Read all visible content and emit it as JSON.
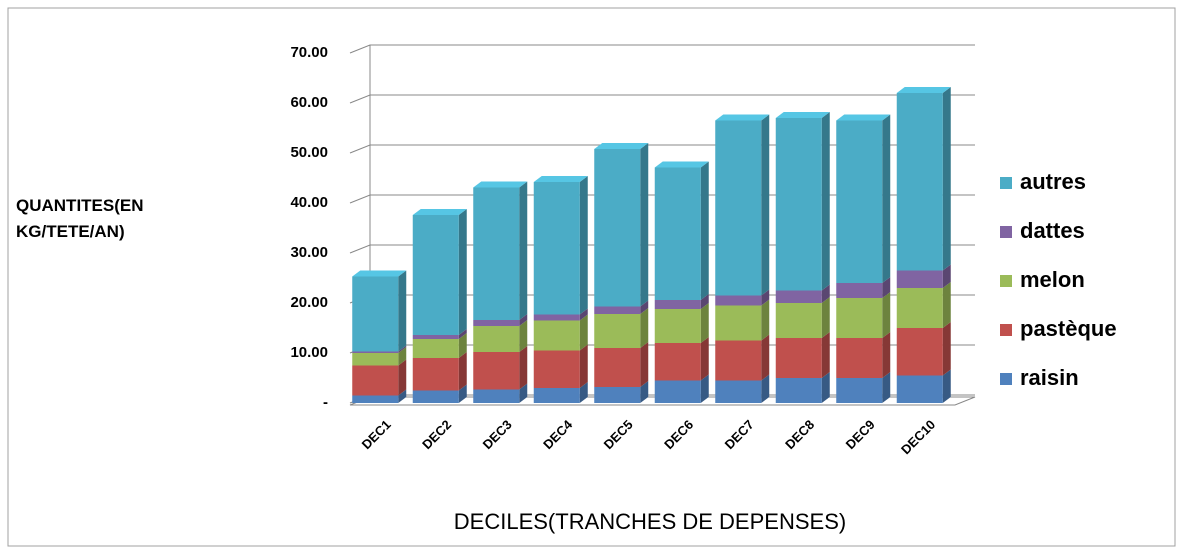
{
  "chart_data": {
    "type": "bar",
    "stacked": true,
    "three_d": true,
    "y_label": "QUANTITES(EN KG/TETE/AN)",
    "x_label": "DECILES(TRANCHES DE DEPENSES)",
    "categories": [
      "DEC1",
      "DEC2",
      "DEC3",
      "DEC4",
      "DEC5",
      "DEC6",
      "DEC7",
      "DEC8",
      "DEC9",
      "DEC10"
    ],
    "series": [
      {
        "name": "raisin",
        "color": "#4f81bd",
        "values": [
          1.5,
          2.5,
          2.7,
          3,
          3.2,
          4.5,
          4.5,
          5,
          5,
          5.5
        ]
      },
      {
        "name": "pastèque",
        "color": "#c0504d",
        "values": [
          6,
          6.5,
          7.5,
          7.5,
          7.8,
          7.5,
          8,
          8,
          8,
          9.5
        ]
      },
      {
        "name": "melon",
        "color": "#9bbb59",
        "values": [
          2.5,
          3.8,
          5.2,
          6,
          6.8,
          6.8,
          7,
          7,
          8,
          8
        ]
      },
      {
        "name": "dattes",
        "color": "#8064a2",
        "values": [
          0.3,
          0.8,
          1.2,
          1.2,
          1.5,
          1.8,
          2,
          2.5,
          3,
          3.5
        ]
      },
      {
        "name": "autres",
        "color": "#4bacc6",
        "values": [
          15,
          24,
          26.5,
          26.5,
          31.5,
          26.5,
          35,
          34.5,
          32.5,
          35.5
        ]
      }
    ],
    "ylim": [
      0,
      70
    ],
    "yticks": [
      {
        "value": 0,
        "label": "-"
      },
      {
        "value": 10,
        "label": "10.00"
      },
      {
        "value": 20,
        "label": "20.00"
      },
      {
        "value": 30,
        "label": "30.00"
      },
      {
        "value": 40,
        "label": "40.00"
      },
      {
        "value": 50,
        "label": "50.00"
      },
      {
        "value": 60,
        "label": "60.00"
      },
      {
        "value": 70,
        "label": "70.00"
      }
    ],
    "grid": true,
    "legend": "right"
  }
}
